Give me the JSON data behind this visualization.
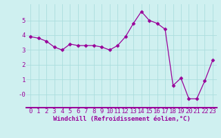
{
  "x": [
    0,
    1,
    2,
    3,
    4,
    5,
    6,
    7,
    8,
    9,
    10,
    11,
    12,
    13,
    14,
    15,
    16,
    17,
    18,
    19,
    20,
    21,
    22,
    23
  ],
  "y": [
    3.9,
    3.8,
    3.6,
    3.2,
    3.0,
    3.4,
    3.3,
    3.3,
    3.3,
    3.2,
    3.0,
    3.3,
    3.9,
    4.8,
    5.6,
    5.0,
    4.8,
    4.4,
    0.6,
    1.1,
    -0.3,
    -0.3,
    0.9,
    2.3
  ],
  "line_color": "#990099",
  "marker": "D",
  "marker_size": 2.5,
  "bg_color": "#cff0f0",
  "grid_color": "#aadddd",
  "xlabel": "Windchill (Refroidissement éolien,°C)",
  "xlabel_fontsize": 6.5,
  "tick_fontsize": 6.5,
  "yticks": [
    0,
    1,
    2,
    3,
    4,
    5
  ],
  "ytick_labels": [
    "-0",
    "1",
    "2",
    "3",
    "4",
    "5"
  ],
  "ylim": [
    -0.9,
    6.1
  ],
  "xlim": [
    -0.5,
    23.5
  ],
  "xticks": [
    0,
    1,
    2,
    3,
    4,
    5,
    6,
    7,
    8,
    9,
    10,
    11,
    12,
    13,
    14,
    15,
    16,
    17,
    18,
    19,
    20,
    21,
    22,
    23
  ],
  "spine_color": "#990099",
  "xlabel_color": "#990099"
}
